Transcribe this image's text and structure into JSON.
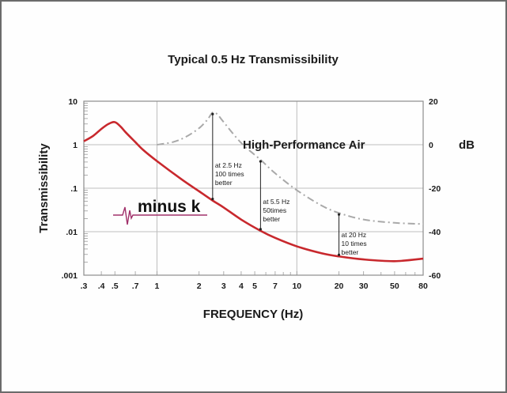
{
  "chart_data": {
    "type": "line",
    "title": "Typical 0.5 Hz Transmissibility",
    "xlabel": "FREQUENCY (Hz)",
    "ylabel": "Transmissibility",
    "y2label": "dB",
    "xscale": "log",
    "yscale": "log",
    "xlim": [
      0.3,
      80
    ],
    "ylim": [
      0.001,
      10
    ],
    "y2lim": [
      -60,
      20
    ],
    "grid": true,
    "x_ticks": [
      ".3",
      ".4",
      ".5",
      ".7",
      "1",
      "2",
      "3",
      "4",
      "5",
      "7",
      "10",
      "20",
      "30",
      "50",
      "80"
    ],
    "x_tick_values": [
      0.3,
      0.4,
      0.5,
      0.7,
      1,
      2,
      3,
      4,
      5,
      7,
      10,
      20,
      30,
      50,
      80
    ],
    "y_ticks": [
      "10",
      "1",
      ".1",
      ".01",
      ".001"
    ],
    "y2_ticks": [
      "20",
      "0",
      "-20",
      "-40",
      "-60"
    ],
    "series": [
      {
        "name": "minus k",
        "style": "solid",
        "color": "#c8282d",
        "x": [
          0.3,
          0.35,
          0.4,
          0.45,
          0.5,
          0.55,
          0.6,
          0.7,
          0.8,
          1,
          1.5,
          2,
          2.5,
          3,
          4,
          5.5,
          7,
          10,
          15,
          20,
          30,
          50,
          80
        ],
        "y": [
          1.2,
          1.6,
          2.3,
          3.0,
          3.3,
          2.6,
          1.9,
          1.15,
          0.75,
          0.42,
          0.16,
          0.085,
          0.052,
          0.036,
          0.019,
          0.0105,
          0.0072,
          0.0046,
          0.0032,
          0.0027,
          0.0023,
          0.0021,
          0.0024
        ]
      },
      {
        "name": "High-Performance Air",
        "style": "dash-dot",
        "color": "#a9a9a9",
        "x": [
          1,
          1.3,
          1.6,
          2,
          2.3,
          2.5,
          2.7,
          3,
          4,
          5.5,
          7,
          10,
          15,
          20,
          30,
          50,
          80
        ],
        "y": [
          1.0,
          1.15,
          1.5,
          2.4,
          3.8,
          5.5,
          5.0,
          3.3,
          1.1,
          0.45,
          0.22,
          0.09,
          0.04,
          0.027,
          0.019,
          0.016,
          0.015
        ]
      }
    ],
    "annotations": [
      {
        "x": 2.5,
        "lines": [
          "at 2.5 Hz",
          "100 times",
          "better"
        ]
      },
      {
        "x": 5.5,
        "lines": [
          "at 5.5 Hz",
          "50times",
          "better"
        ]
      },
      {
        "x": 20,
        "lines": [
          "at 20 Hz",
          "10 times",
          "better"
        ]
      }
    ],
    "legend": [
      {
        "label": "High-Performance Air",
        "position": "upper-right inside plot"
      },
      {
        "label": "minus k",
        "position": "left-middle inside plot (logo)"
      }
    ]
  },
  "labels": {
    "title": "Typical 0.5 Hz Transmissibility",
    "xlabel": "FREQUENCY (Hz)",
    "ylabel": "Transmissibility",
    "y2label": "dB",
    "hpa_label": "High-Performance Air",
    "logo_text": "minus k",
    "annot1": [
      "at 2.5 Hz",
      "100 times",
      "better"
    ],
    "annot2": [
      "at 5.5 Hz",
      "50times",
      "better"
    ],
    "annot3": [
      "at 20 Hz",
      "10 times",
      "better"
    ]
  },
  "colors": {
    "minusk": "#c8282d",
    "air": "#a9a9a9",
    "grid": "#bdbdbd",
    "axis": "#8c8c8c",
    "logo_wave": "#a0306a"
  }
}
